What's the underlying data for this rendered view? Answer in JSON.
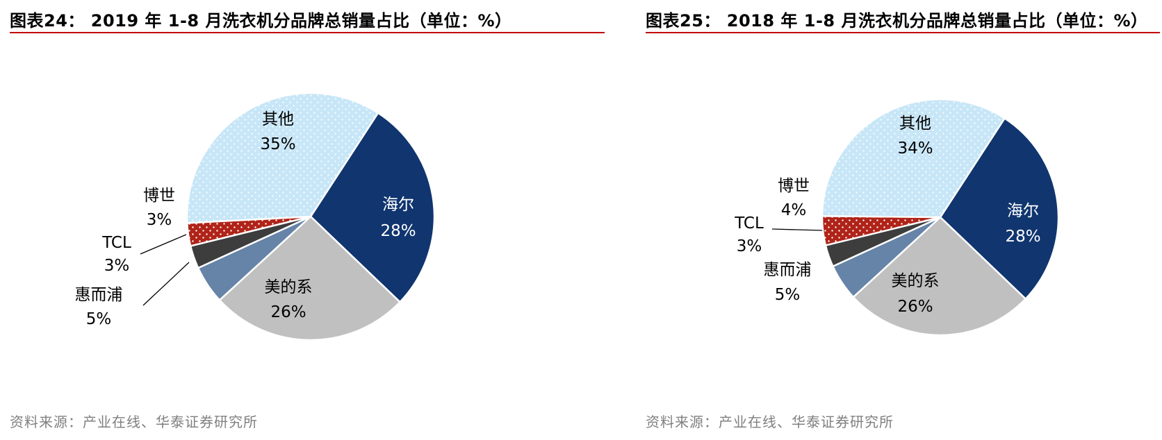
{
  "chart_data": [
    {
      "type": "pie",
      "title": "图表24：  2019 年 1-8 月洗衣机分品牌总销量占比（单位：%）",
      "source": "资料来源：产业在线、华泰证券研究所",
      "categories": [
        "海尔",
        "美的系",
        "惠而浦",
        "TCL",
        "博世",
        "其他"
      ],
      "values": [
        28,
        26,
        5,
        3,
        3,
        35
      ],
      "value_labels": [
        "28%",
        "26%",
        "5%",
        "3%",
        "3%",
        "35%"
      ],
      "colors": [
        "#10356f",
        "#c0c0c0",
        "#6683a8",
        "#3d3d3d",
        "#b02318",
        "#c7e6f7"
      ],
      "legend": "none"
    },
    {
      "type": "pie",
      "title": "图表25：  2018 年 1-8 月洗衣机分品牌总销量占比（单位：%）",
      "source": "资料来源：产业在线、华泰证券研究所",
      "categories": [
        "海尔",
        "美的系",
        "惠而浦",
        "TCL",
        "博世",
        "其他"
      ],
      "values": [
        28,
        26,
        5,
        3,
        4,
        34
      ],
      "value_labels": [
        "28%",
        "26%",
        "5%",
        "3%",
        "4%",
        "34%"
      ],
      "colors": [
        "#10356f",
        "#c0c0c0",
        "#6683a8",
        "#3d3d3d",
        "#b02318",
        "#c7e6f7"
      ],
      "legend": "none"
    }
  ]
}
